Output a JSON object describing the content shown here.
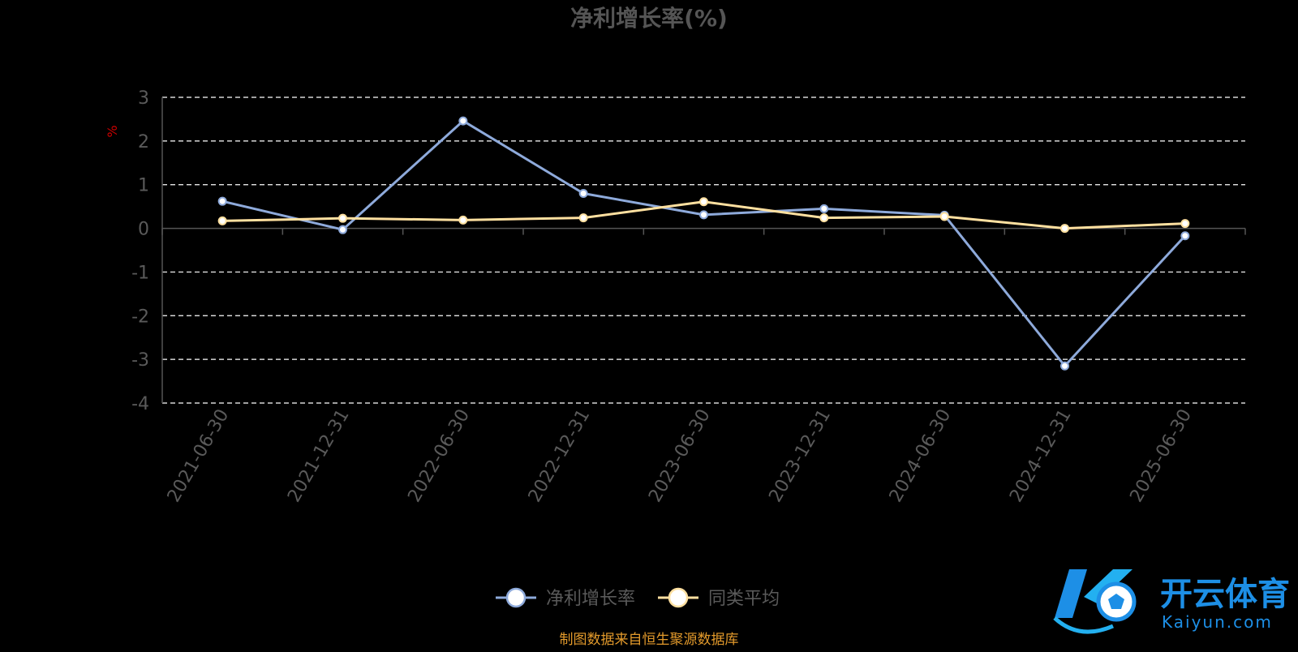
{
  "chart_data": {
    "type": "line",
    "title": "净利增长率(%)",
    "ylabel": "%",
    "xlabel": "",
    "ylim": [
      -4,
      3
    ],
    "yticks": [
      3,
      2,
      1,
      0,
      -1,
      -2,
      -3,
      -4
    ],
    "grid": true,
    "legend_position": "bottom",
    "categories": [
      "2021-06-30",
      "2021-12-31",
      "2022-06-30",
      "2022-12-31",
      "2023-06-30",
      "2023-12-31",
      "2024-06-30",
      "2024-12-31",
      "2025-06-30"
    ],
    "series": [
      {
        "name": "净利增长率",
        "color": "#8eaadb",
        "values": [
          0.62,
          -0.03,
          2.46,
          0.8,
          0.31,
          0.45,
          0.3,
          -3.15,
          -0.17
        ]
      },
      {
        "name": "同类平均",
        "color": "#ffe0a0",
        "values": [
          0.17,
          0.23,
          0.19,
          0.24,
          0.61,
          0.24,
          0.27,
          0.0,
          0.11
        ]
      }
    ]
  },
  "colors": {
    "background": "#000000",
    "title": "#555555",
    "axis_text": "#5a5a5a",
    "ylabel": "#cc0000",
    "grid": "#ffffff",
    "source": "#e39a2b",
    "logo_blue": "#1d8fe6"
  },
  "footer": {
    "source_text": "制图数据来自恒生聚源数据库"
  },
  "watermark": {
    "brand": "开云体育",
    "domain": "Kaiyun.com"
  }
}
